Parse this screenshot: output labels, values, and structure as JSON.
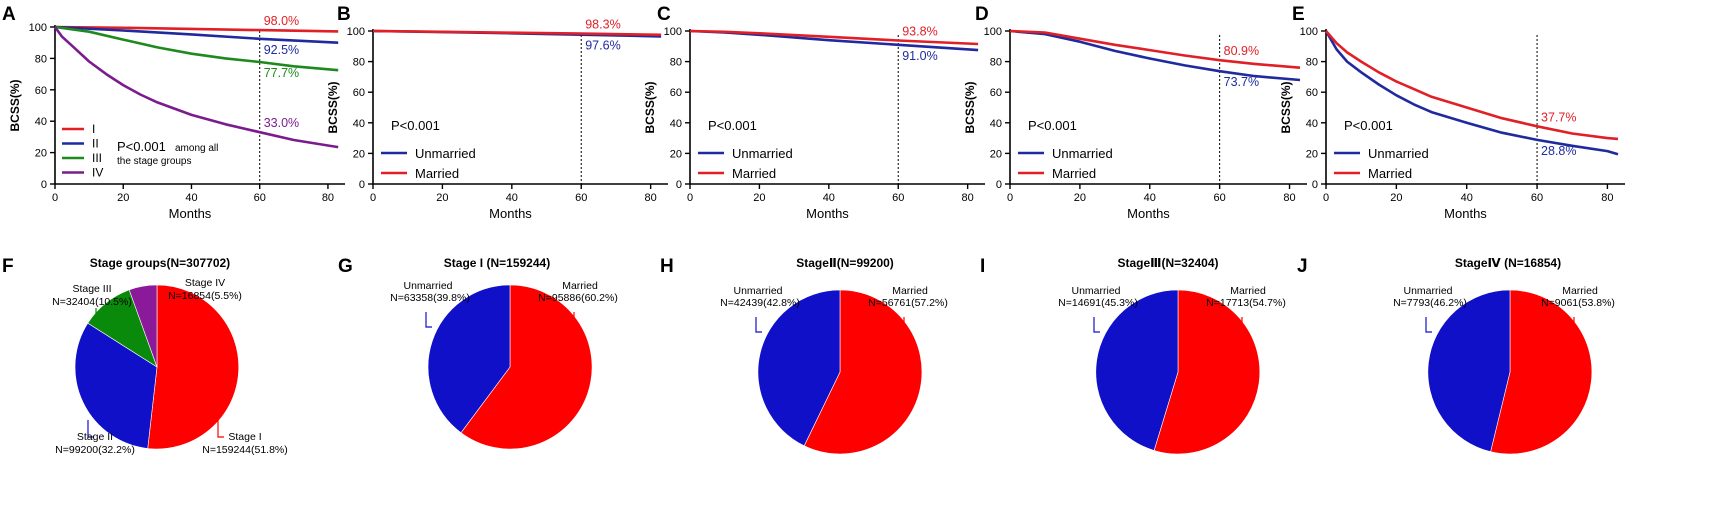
{
  "colors": {
    "red": "#e11f26",
    "blue": "#1f2a9e",
    "green": "#1e8a1e",
    "purple": "#7b1c8e",
    "black": "#000000"
  },
  "chart_data": [
    {
      "panel": "A",
      "type": "line",
      "xlabel": "Months",
      "ylabel": "BCSS(%)",
      "xticks": [
        0,
        20,
        40,
        60,
        80
      ],
      "yticks": [
        0,
        20,
        40,
        60,
        80,
        100
      ],
      "xlim": [
        0,
        85
      ],
      "ylim": [
        0,
        100
      ],
      "cutoff_x": 60,
      "pvalue": "P<0.001",
      "pvalue_extra": [
        "among all",
        "the stage groups"
      ],
      "series": [
        {
          "name": "I",
          "color": "#e11f26",
          "points": [
            [
              0,
              100
            ],
            [
              20,
              99.5
            ],
            [
              40,
              98.8
            ],
            [
              60,
              98.0
            ],
            [
              83,
              97.2
            ]
          ],
          "label": "98.0%",
          "label_pos": "above"
        },
        {
          "name": "II",
          "color": "#1f2a9e",
          "points": [
            [
              0,
              100
            ],
            [
              20,
              97.8
            ],
            [
              40,
              95.3
            ],
            [
              60,
              92.5
            ],
            [
              83,
              90.0
            ]
          ],
          "label": "92.5%",
          "label_pos": "below"
        },
        {
          "name": "III",
          "color": "#1e8a1e",
          "points": [
            [
              0,
              100
            ],
            [
              10,
              97
            ],
            [
              20,
              92
            ],
            [
              30,
              87
            ],
            [
              40,
              83
            ],
            [
              50,
              80
            ],
            [
              60,
              77.7
            ],
            [
              70,
              75
            ],
            [
              83,
              72.5
            ]
          ],
          "label": "77.7%",
          "label_pos": "below"
        },
        {
          "name": "IV",
          "color": "#7b1c8e",
          "points": [
            [
              0,
              100
            ],
            [
              2,
              94
            ],
            [
              5,
              88
            ],
            [
              10,
              78
            ],
            [
              15,
              70
            ],
            [
              20,
              63
            ],
            [
              25,
              57
            ],
            [
              30,
              52
            ],
            [
              40,
              44
            ],
            [
              50,
              38
            ],
            [
              60,
              33.0
            ],
            [
              70,
              28
            ],
            [
              80,
              24.5
            ],
            [
              83,
              23.5
            ]
          ],
          "label": "33.0%",
          "label_pos": "above"
        }
      ]
    },
    {
      "panel": "B",
      "type": "line",
      "xlabel": "Months",
      "ylabel": "BCSS(%)",
      "xticks": [
        0,
        20,
        40,
        60,
        80
      ],
      "yticks": [
        0,
        20,
        40,
        60,
        80,
        100
      ],
      "xlim": [
        0,
        85
      ],
      "ylim": [
        0,
        100
      ],
      "cutoff_x": 60,
      "pvalue": "P<0.001",
      "series": [
        {
          "name": "Unmarried",
          "color": "#1f2a9e",
          "points": [
            [
              0,
              100
            ],
            [
              20,
              99.3
            ],
            [
              40,
              98.5
            ],
            [
              60,
              97.6
            ],
            [
              83,
              96.5
            ]
          ],
          "label": "97.6%",
          "label_pos": "below"
        },
        {
          "name": "Married",
          "color": "#e11f26",
          "points": [
            [
              0,
              100
            ],
            [
              20,
              99.5
            ],
            [
              40,
              98.9
            ],
            [
              60,
              98.3
            ],
            [
              83,
              97.5
            ]
          ],
          "label": "98.3%",
          "label_pos": "above"
        }
      ]
    },
    {
      "panel": "C",
      "type": "line",
      "xlabel": "Months",
      "ylabel": "BCSS(%)",
      "xticks": [
        0,
        20,
        40,
        60,
        80
      ],
      "yticks": [
        0,
        20,
        40,
        60,
        80,
        100
      ],
      "xlim": [
        0,
        85
      ],
      "ylim": [
        0,
        100
      ],
      "cutoff_x": 60,
      "pvalue": "P<0.001",
      "series": [
        {
          "name": "Unmarried",
          "color": "#1f2a9e",
          "points": [
            [
              0,
              100
            ],
            [
              10,
              99
            ],
            [
              20,
              97.5
            ],
            [
              40,
              94
            ],
            [
              60,
              91.0
            ],
            [
              83,
              87.5
            ]
          ],
          "label": "91.0%",
          "label_pos": "below"
        },
        {
          "name": "Married",
          "color": "#e11f26",
          "points": [
            [
              0,
              100
            ],
            [
              10,
              99.5
            ],
            [
              20,
              98.5
            ],
            [
              40,
              96.2
            ],
            [
              60,
              93.8
            ],
            [
              83,
              91.5
            ]
          ],
          "label": "93.8%",
          "label_pos": "above"
        }
      ]
    },
    {
      "panel": "D",
      "type": "line",
      "xlabel": "Months",
      "ylabel": "BCSS(%)",
      "xticks": [
        0,
        20,
        40,
        60,
        80
      ],
      "yticks": [
        0,
        20,
        40,
        60,
        80,
        100
      ],
      "xlim": [
        0,
        85
      ],
      "ylim": [
        0,
        100
      ],
      "cutoff_x": 60,
      "pvalue": "P<0.001",
      "series": [
        {
          "name": "Unmarried",
          "color": "#1f2a9e",
          "points": [
            [
              0,
              100
            ],
            [
              10,
              98
            ],
            [
              20,
              93
            ],
            [
              30,
              87
            ],
            [
              40,
              82
            ],
            [
              50,
              77.5
            ],
            [
              60,
              73.7
            ],
            [
              70,
              70.5
            ],
            [
              83,
              68
            ]
          ],
          "label": "73.7%",
          "label_pos": "below"
        },
        {
          "name": "Married",
          "color": "#e11f26",
          "points": [
            [
              0,
              100
            ],
            [
              10,
              99
            ],
            [
              20,
              95
            ],
            [
              30,
              91
            ],
            [
              40,
              87.5
            ],
            [
              50,
              84
            ],
            [
              60,
              80.9
            ],
            [
              70,
              78.5
            ],
            [
              83,
              76
            ]
          ],
          "label": "80.9%",
          "label_pos": "above"
        }
      ]
    },
    {
      "panel": "E",
      "type": "line",
      "xlabel": "Months",
      "ylabel": "BCSS(%)",
      "xticks": [
        0,
        20,
        40,
        60,
        80
      ],
      "yticks": [
        0,
        20,
        40,
        60,
        80,
        100
      ],
      "xlim": [
        0,
        85
      ],
      "ylim": [
        0,
        100
      ],
      "cutoff_x": 60,
      "pvalue": "P<0.001",
      "series": [
        {
          "name": "Unmarried",
          "color": "#1f2a9e",
          "points": [
            [
              0,
              100
            ],
            [
              3,
              88
            ],
            [
              6,
              80
            ],
            [
              10,
              73
            ],
            [
              15,
              65
            ],
            [
              20,
              58
            ],
            [
              25,
              52
            ],
            [
              30,
              47
            ],
            [
              40,
              40
            ],
            [
              50,
              33.5
            ],
            [
              60,
              28.8
            ],
            [
              70,
              25
            ],
            [
              80,
              21.5
            ],
            [
              83,
              19.5
            ]
          ],
          "label": "28.8%",
          "label_pos": "below"
        },
        {
          "name": "Married",
          "color": "#e11f26",
          "points": [
            [
              0,
              100
            ],
            [
              3,
              92
            ],
            [
              6,
              86
            ],
            [
              10,
              80
            ],
            [
              15,
              73
            ],
            [
              20,
              67
            ],
            [
              25,
              62
            ],
            [
              30,
              57
            ],
            [
              40,
              50
            ],
            [
              50,
              43
            ],
            [
              60,
              37.7
            ],
            [
              70,
              33
            ],
            [
              80,
              30
            ],
            [
              83,
              29.5
            ]
          ],
          "label": "37.7%",
          "label_pos": "above"
        }
      ]
    },
    {
      "panel": "F",
      "type": "pie",
      "title": "Stage groups(N=307702)",
      "slices": [
        {
          "name": "Stage I",
          "value": 51.8,
          "count_label": "N=159244(51.8%)",
          "color": "#ff0000"
        },
        {
          "name": "Stage II",
          "value": 32.2,
          "count_label": "N=99200(32.2%)",
          "color": "#1010c8"
        },
        {
          "name": "Stage III",
          "value": 10.5,
          "count_label": "N=32404(10.5%)",
          "color": "#0a8a0a"
        },
        {
          "name": "Stage IV",
          "value": 5.5,
          "count_label": "N=16854(5.5%)",
          "color": "#8b1a9a"
        }
      ]
    },
    {
      "panel": "G",
      "type": "pie",
      "title": "Stage I (N=159244)",
      "slices": [
        {
          "name": "Married",
          "value": 60.2,
          "count_label": "N=95886(60.2%)",
          "color": "#ff0000"
        },
        {
          "name": "Unmarried",
          "value": 39.8,
          "count_label": "N=63358(39.8%)",
          "color": "#1010c8"
        }
      ]
    },
    {
      "panel": "H",
      "type": "pie",
      "title": "StageⅡ(N=99200)",
      "slices": [
        {
          "name": "Married",
          "value": 57.2,
          "count_label": "N=56761(57.2%)",
          "color": "#ff0000"
        },
        {
          "name": "Unmarried",
          "value": 42.8,
          "count_label": "N=42439(42.8%)",
          "color": "#1010c8"
        }
      ]
    },
    {
      "panel": "I",
      "type": "pie",
      "title": "StageⅢ(N=32404)",
      "slices": [
        {
          "name": "Married",
          "value": 54.7,
          "count_label": "N=17713(54.7%)",
          "color": "#ff0000"
        },
        {
          "name": "Unmarried",
          "value": 45.3,
          "count_label": "N=14691(45.3%)",
          "color": "#1010c8"
        }
      ]
    },
    {
      "panel": "J",
      "type": "pie",
      "title": "StageⅣ (N=16854)",
      "slices": [
        {
          "name": "Married",
          "value": 53.8,
          "count_label": "N=9061(53.8%)",
          "color": "#ff0000"
        },
        {
          "name": "Unmarried",
          "value": 46.2,
          "count_label": "N=7793(46.2%)",
          "color": "#1010c8"
        }
      ]
    }
  ]
}
